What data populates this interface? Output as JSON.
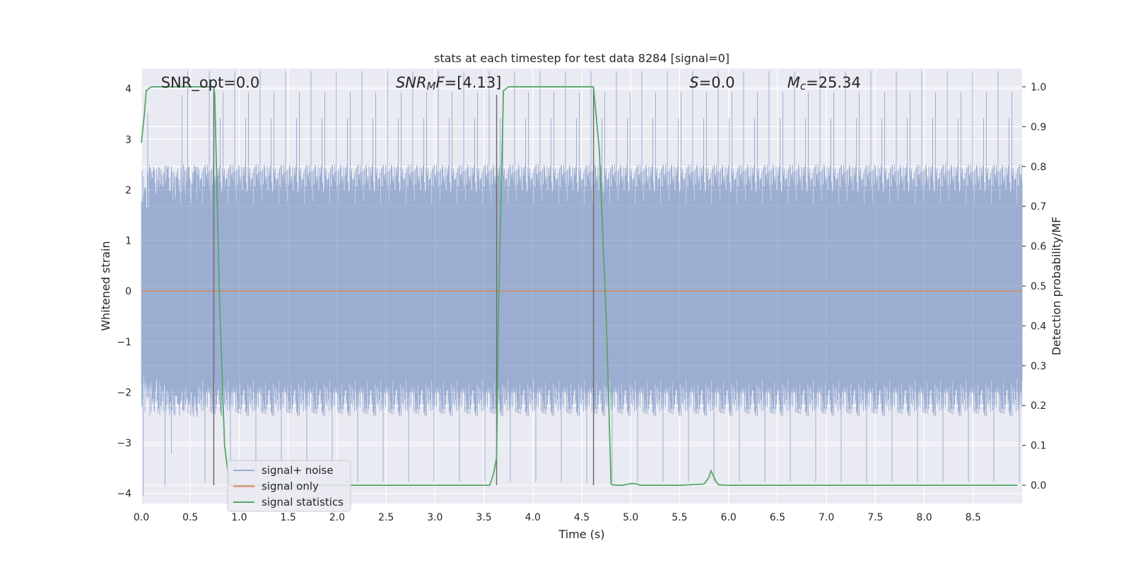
{
  "chart_data": {
    "type": "line",
    "title": "stats at each timestep for test data 8284 [signal=0]",
    "xlabel": "Time (s)",
    "ylabel": "Whitened strain",
    "y2label": "Detection probability/MF",
    "xlim": [
      0,
      9.0
    ],
    "ylim": [
      -4.2,
      4.4
    ],
    "y2lim": [
      -0.046,
      1.046
    ],
    "x_ticks": [
      0.0,
      0.5,
      1.0,
      1.5,
      2.0,
      2.5,
      3.0,
      3.5,
      4.0,
      4.5,
      5.0,
      5.5,
      6.0,
      6.5,
      7.0,
      7.5,
      8.0,
      8.5
    ],
    "x_tick_labels": [
      "0.0",
      "0.5",
      "1.0",
      "1.5",
      "2.0",
      "2.5",
      "3.0",
      "3.5",
      "4.0",
      "4.5",
      "5.0",
      "5.5",
      "6.0",
      "6.5",
      "7.0",
      "7.5",
      "8.0",
      "8.5"
    ],
    "y_ticks": [
      4,
      3,
      2,
      1,
      0,
      -1,
      -2,
      -3,
      -4
    ],
    "y_tick_labels": [
      "4",
      "3",
      "2",
      "1",
      "0",
      "−1",
      "−2",
      "−3",
      "−4"
    ],
    "y2_ticks": [
      1.0,
      0.9,
      0.8,
      0.7,
      0.6,
      0.5,
      0.4,
      0.3,
      0.2,
      0.1,
      0.0
    ],
    "y2_tick_labels": [
      "1.0",
      "0.9",
      "0.8",
      "0.7",
      "0.6",
      "0.5",
      "0.4",
      "0.3",
      "0.2",
      "0.1",
      "0.0"
    ],
    "grid": true,
    "legend_position": "lower-left",
    "annotations": [
      {
        "name": "snr-opt",
        "x": 0.2,
        "y": 4.02,
        "parts": [
          {
            "t": "SNR_opt=0.0",
            "it": false,
            "sub": false
          }
        ]
      },
      {
        "name": "snr-mf",
        "x": 2.6,
        "y": 4.02,
        "parts": [
          {
            "t": "SNR",
            "it": true,
            "sub": false
          },
          {
            "t": "M",
            "it": true,
            "sub": true
          },
          {
            "t": "F",
            "it": true,
            "sub": false
          },
          {
            "t": "=[4.13]",
            "it": false,
            "sub": false
          }
        ]
      },
      {
        "name": "s-value",
        "x": 5.6,
        "y": 4.02,
        "parts": [
          {
            "t": "S",
            "it": true,
            "sub": false
          },
          {
            "t": "=0.0",
            "it": false,
            "sub": false
          }
        ]
      },
      {
        "name": "chirp-mass",
        "x": 6.6,
        "y": 4.02,
        "parts": [
          {
            "t": "M",
            "it": true,
            "sub": false
          },
          {
            "t": "c",
            "it": true,
            "sub": true
          },
          {
            "t": "=25.34",
            "it": false,
            "sub": false
          }
        ]
      }
    ],
    "series": [
      {
        "name": "signal+ noise",
        "color": "#4c72b0",
        "opacity": 0.5,
        "axis": "left",
        "kind": "noise",
        "x_range": [
          0,
          9.0
        ],
        "envelope_core": [
          -1.6,
          1.6
        ]
      },
      {
        "name": "signal only",
        "color": "#dd8452",
        "axis": "left",
        "x": [
          0,
          9.0
        ],
        "values": [
          0,
          0
        ]
      },
      {
        "name": "signal statistics",
        "color": "#55a868",
        "axis": "right",
        "x": [
          0.0,
          0.03,
          0.05,
          0.1,
          0.15,
          0.25,
          0.5,
          0.74,
          0.75,
          0.8,
          0.85,
          0.9,
          1.0,
          1.5,
          2.0,
          2.5,
          3.0,
          3.5,
          3.56,
          3.6,
          3.63,
          3.65,
          3.7,
          3.75,
          3.8,
          4.0,
          4.5,
          4.62,
          4.68,
          4.75,
          4.8,
          4.85,
          4.92,
          5.0,
          5.05,
          5.1,
          5.2,
          5.5,
          5.75,
          5.8,
          5.82,
          5.87,
          5.9,
          6.0,
          7.0,
          8.0,
          8.95
        ],
        "values": [
          0.86,
          0.93,
          0.99,
          1.0,
          1.0,
          1.0,
          1.0,
          1.0,
          0.98,
          0.45,
          0.1,
          0.0,
          0.0,
          0.0,
          0.0,
          0.0,
          0.0,
          0.0,
          0.0,
          0.03,
          0.07,
          0.45,
          0.99,
          1.0,
          1.0,
          1.0,
          1.0,
          1.0,
          0.84,
          0.42,
          0.002,
          0.0,
          0.0,
          0.004,
          0.004,
          0.0,
          0.0,
          0.0,
          0.003,
          0.02,
          0.037,
          0.01,
          0.001,
          0.0,
          0.0,
          0.0,
          0.0
        ]
      }
    ],
    "vlines": [
      {
        "x": 0.74,
        "y_top": 1.0,
        "color": "#6e6e6e"
      },
      {
        "x": 3.63,
        "y_top": 0.98,
        "color": "#6e6e6e"
      },
      {
        "x": 4.62,
        "y_top": 1.0,
        "color": "#6e6e6e"
      }
    ]
  }
}
